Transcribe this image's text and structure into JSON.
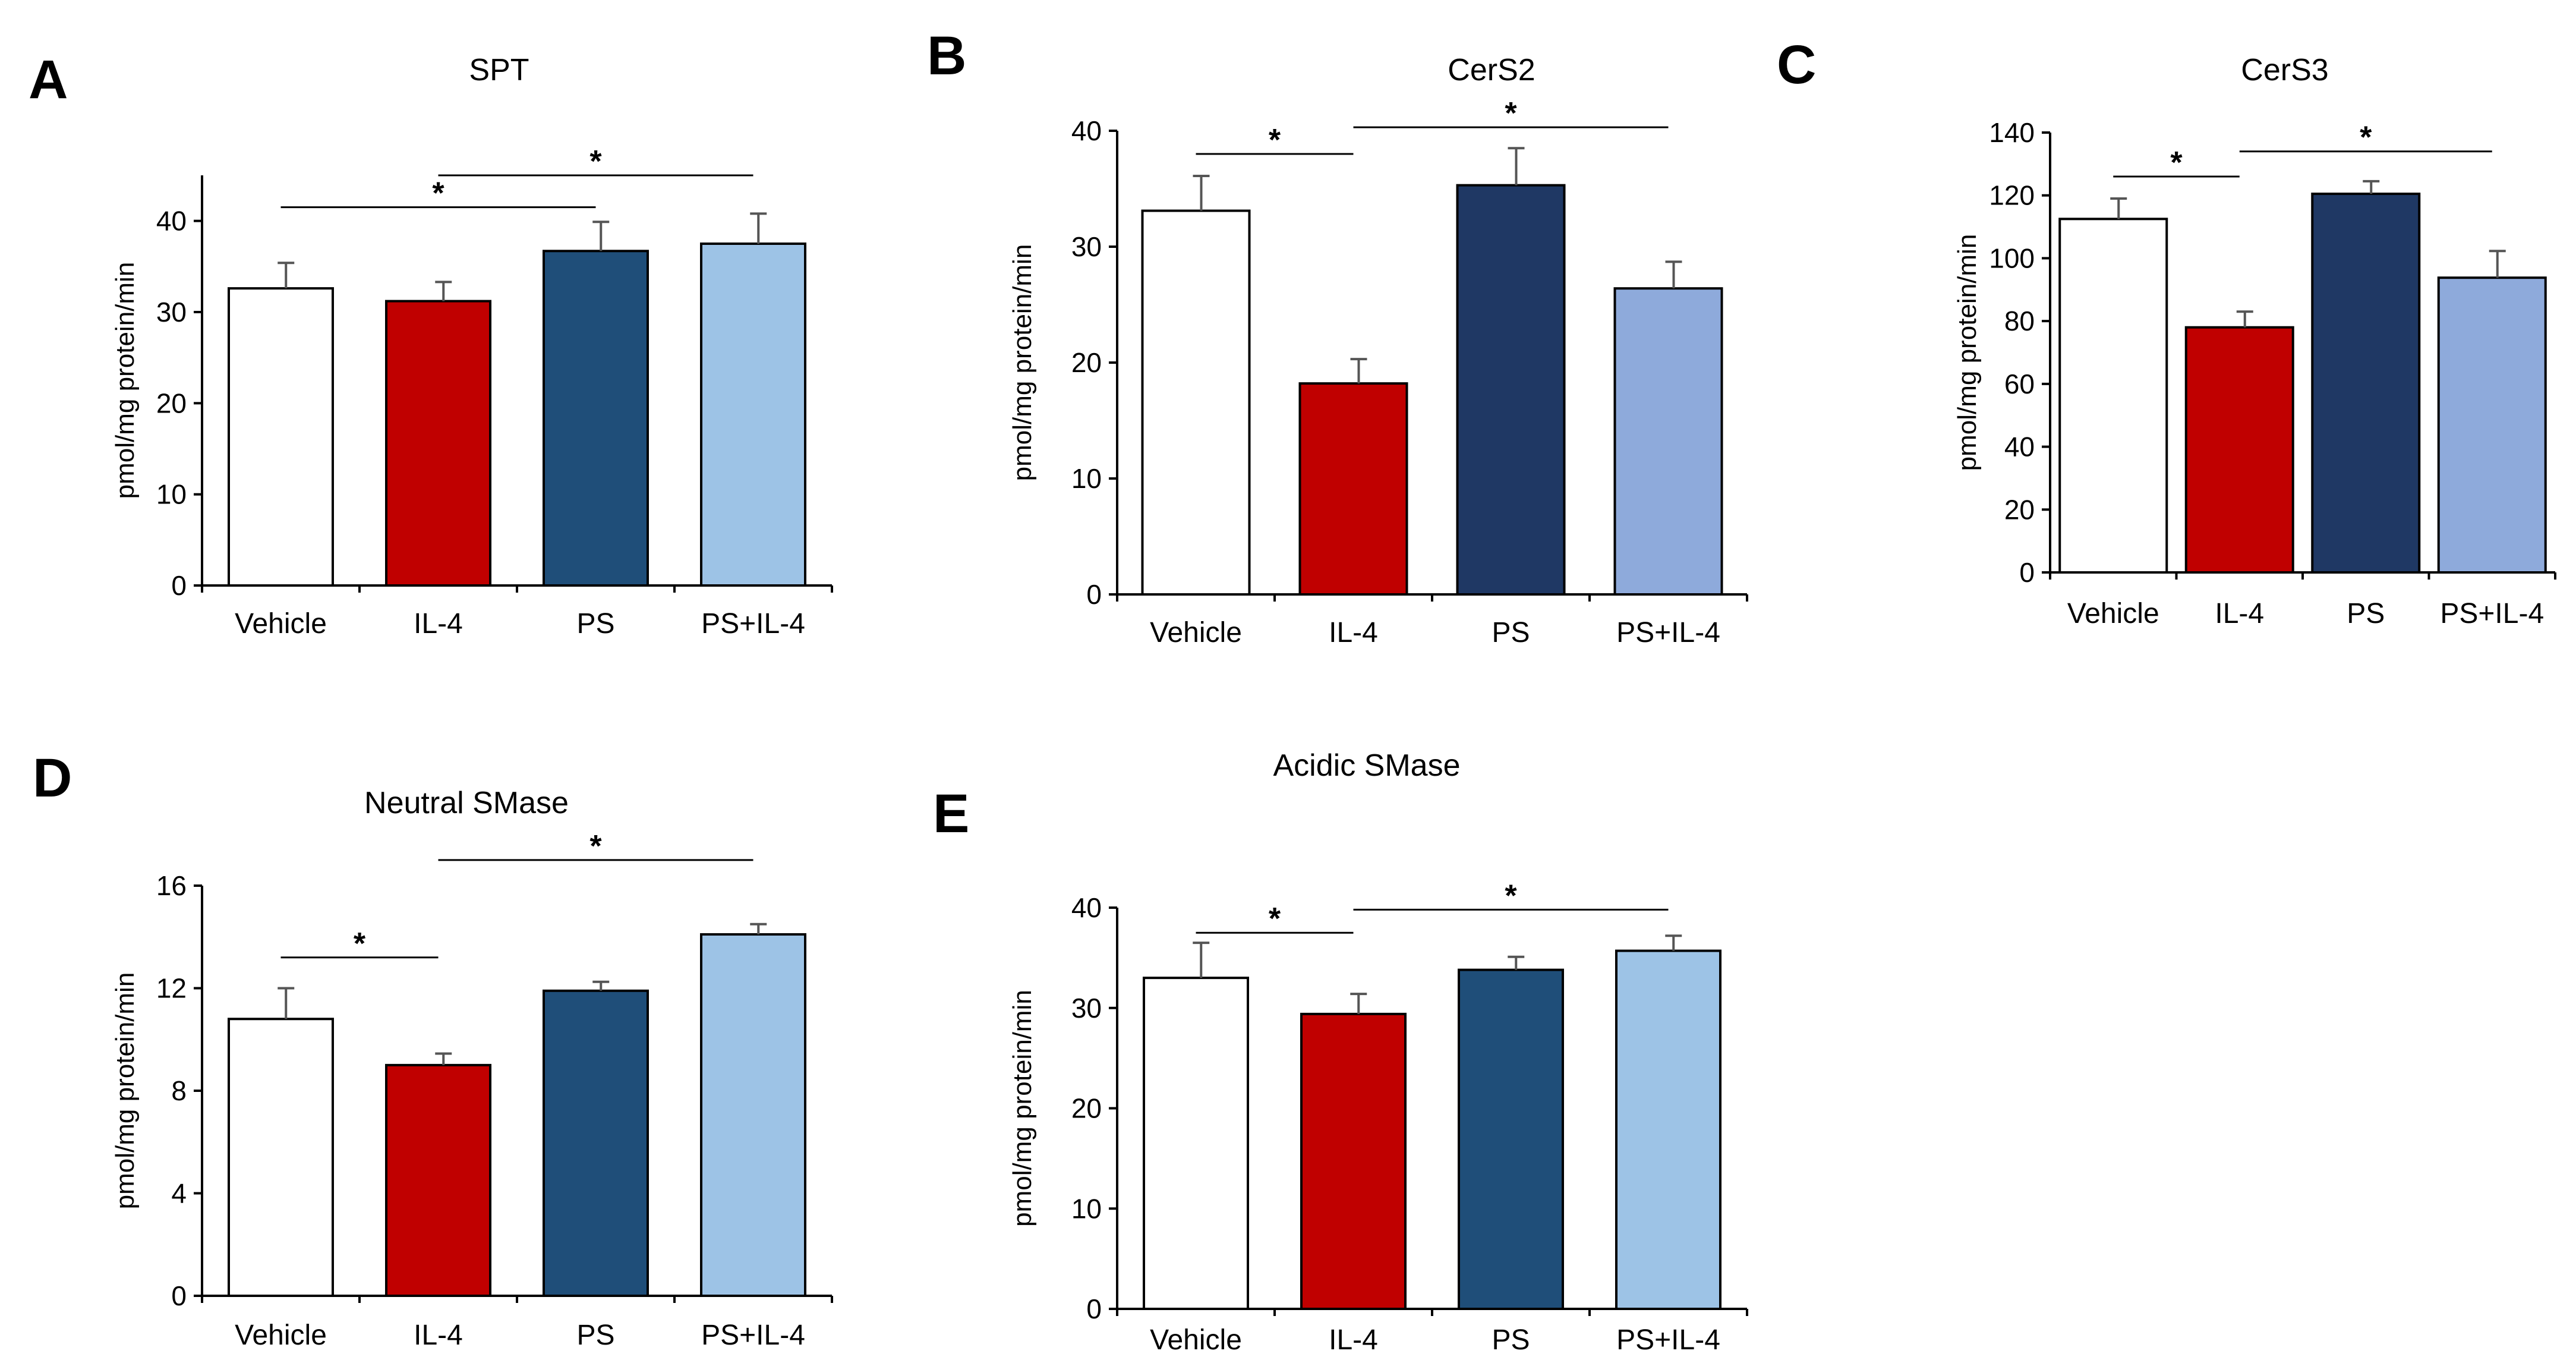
{
  "chart_data": [
    {
      "type": "bar",
      "panel": "A",
      "title": "SPT",
      "ylabel": "pmol/mg protein/min",
      "categories": [
        "Vehicle",
        "IL-4",
        "PS",
        "PS+IL-4"
      ],
      "values": [
        32.6,
        31.2,
        36.7,
        37.5
      ],
      "errors": [
        2.8,
        2.1,
        3.2,
        3.3
      ],
      "colors": [
        "#ffffff",
        "#c00000",
        "#1f4e79",
        "#9dc3e6"
      ],
      "ylim": [
        0,
        45
      ],
      "yticks": [
        0,
        10,
        20,
        30,
        40
      ],
      "significance": [
        {
          "from": 0,
          "to": 2,
          "y": 41.5,
          "label": "*"
        },
        {
          "from": 1,
          "to": 3,
          "y": 45.0,
          "label": "*"
        }
      ]
    },
    {
      "type": "bar",
      "panel": "B",
      "title": "CerS2",
      "ylabel": "pmol/mg protein/min",
      "categories": [
        "Vehicle",
        "IL-4",
        "PS",
        "PS+IL-4"
      ],
      "values": [
        33.1,
        18.2,
        35.3,
        26.4
      ],
      "errors": [
        3.0,
        2.1,
        3.2,
        2.3
      ],
      "colors": [
        "#ffffff",
        "#c00000",
        "#1f3864",
        "#8eaadb"
      ],
      "ylim": [
        0,
        40
      ],
      "yticks": [
        0,
        10,
        20,
        30,
        40
      ],
      "significance": [
        {
          "from": 0,
          "to": 1,
          "y": 38.0,
          "label": "*"
        },
        {
          "from": 1,
          "to": 3,
          "y": 40.3,
          "label": "*"
        }
      ]
    },
    {
      "type": "bar",
      "panel": "C",
      "title": "CerS3",
      "ylabel": "pmol/mg protein/min",
      "categories": [
        "Vehicle",
        "IL-4",
        "PS",
        "PS+IL-4"
      ],
      "values": [
        112.5,
        78.0,
        120.5,
        93.8
      ],
      "errors": [
        6.5,
        5.0,
        4.0,
        8.5
      ],
      "colors": [
        "#ffffff",
        "#c00000",
        "#1f3864",
        "#8eaadb"
      ],
      "ylim": [
        0,
        140
      ],
      "yticks": [
        0,
        20,
        40,
        60,
        80,
        100,
        120,
        140
      ],
      "significance": [
        {
          "from": 0,
          "to": 1,
          "y": 126.0,
          "label": "*"
        },
        {
          "from": 1,
          "to": 3,
          "y": 134.0,
          "label": "*"
        }
      ]
    },
    {
      "type": "bar",
      "panel": "D",
      "title": "Neutral SMase",
      "ylabel": "pmol/mg protein/min",
      "categories": [
        "Vehicle",
        "IL-4",
        "PS",
        "PS+IL-4"
      ],
      "values": [
        10.8,
        9.0,
        11.9,
        14.1
      ],
      "errors": [
        1.2,
        0.45,
        0.35,
        0.4
      ],
      "colors": [
        "#ffffff",
        "#c00000",
        "#1f4e79",
        "#9dc3e6"
      ],
      "ylim": [
        0,
        16
      ],
      "yticks": [
        0,
        4,
        8,
        12,
        16
      ],
      "significance": [
        {
          "from": 0,
          "to": 1,
          "y": 13.2,
          "label": "*"
        },
        {
          "from": 1,
          "to": 3,
          "y": 17.0,
          "label": "*"
        }
      ]
    },
    {
      "type": "bar",
      "panel": "E",
      "title": "Acidic SMase",
      "ylabel": "pmol/mg protein/min",
      "categories": [
        "Vehicle",
        "IL-4",
        "PS",
        "PS+IL-4"
      ],
      "values": [
        33.0,
        29.4,
        33.8,
        35.7
      ],
      "errors": [
        3.5,
        2.0,
        1.3,
        1.5
      ],
      "colors": [
        "#ffffff",
        "#c00000",
        "#1f4e79",
        "#9dc3e6"
      ],
      "ylim": [
        0,
        40
      ],
      "yticks": [
        0,
        10,
        20,
        30,
        40
      ],
      "significance": [
        {
          "from": 0,
          "to": 1,
          "y": 37.5,
          "label": "*"
        },
        {
          "from": 1,
          "to": 3,
          "y": 39.8,
          "label": "*"
        }
      ]
    }
  ]
}
